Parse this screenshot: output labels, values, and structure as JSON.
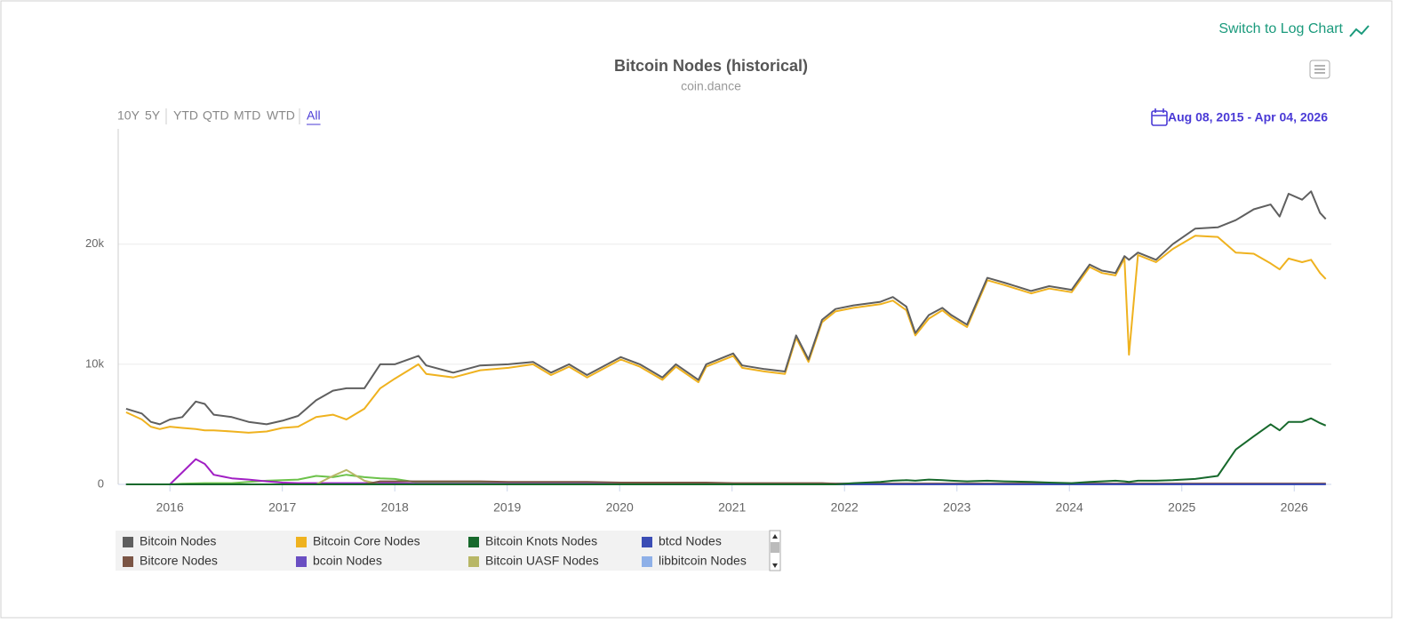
{
  "ui": {
    "log_switch": "Switch to Log Chart",
    "range_buttons": [
      "10Y",
      "5Y",
      "YTD",
      "QTD",
      "MTD",
      "WTD",
      "All"
    ],
    "date_range": "Aug 08, 2015 - Apr 04, 2026"
  },
  "chart_data": {
    "type": "line",
    "title": "Bitcoin Nodes (historical)",
    "subtitle": "coin.dance",
    "x": [
      2015.61,
      2015.75,
      2015.83,
      2015.91,
      2016.0,
      2016.11,
      2016.23,
      2016.31,
      2016.39,
      2016.55,
      2016.7,
      2016.86,
      2017.0,
      2017.14,
      2017.3,
      2017.45,
      2017.57,
      2017.73,
      2017.87,
      2018.0,
      2018.21,
      2018.28,
      2018.52,
      2018.76,
      2019.01,
      2019.23,
      2019.39,
      2019.55,
      2019.71,
      2020.01,
      2020.18,
      2020.38,
      2020.5,
      2020.7,
      2020.77,
      2021.01,
      2021.09,
      2021.29,
      2021.47,
      2021.57,
      2021.68,
      2021.8,
      2021.92,
      2022.08,
      2022.32,
      2022.43,
      2022.55,
      2022.63,
      2022.75,
      2022.87,
      2022.95,
      2023.09,
      2023.27,
      2023.42,
      2023.66,
      2023.82,
      2024.02,
      2024.18,
      2024.29,
      2024.41,
      2024.49,
      2024.53,
      2024.61,
      2024.77,
      2024.92,
      2025.12,
      2025.32,
      2025.48,
      2025.64,
      2025.79,
      2025.87,
      2025.95,
      2026.07,
      2026.15,
      2026.23,
      2026.28
    ],
    "xlim": [
      2015.54,
      2026.33
    ],
    "xticks": [
      2016,
      2017,
      2018,
      2019,
      2020,
      2021,
      2022,
      2023,
      2024,
      2025,
      2026
    ],
    "ylim": [
      0,
      29600
    ],
    "yticks": [
      0,
      {
        "value": 10000,
        "label": "10k"
      },
      {
        "value": 20000,
        "label": "20k"
      }
    ],
    "grid": true,
    "series": [
      {
        "name": "Bitcoin Nodes",
        "color": "#5f5f5f",
        "values": [
          6300,
          5900,
          5200,
          5000,
          5400,
          5600,
          6900,
          6700,
          5800,
          5600,
          5200,
          5000,
          5300,
          5700,
          7000,
          7800,
          8000,
          8000,
          10000,
          10000,
          10700,
          9900,
          9300,
          9900,
          10000,
          10200,
          9300,
          10000,
          9100,
          10600,
          10000,
          8900,
          10000,
          8700,
          10000,
          10900,
          9900,
          9600,
          9400,
          12400,
          10400,
          13700,
          14600,
          14900,
          15200,
          15600,
          14800,
          12600,
          14100,
          14700,
          14100,
          13300,
          17200,
          16800,
          16100,
          16500,
          16200,
          18300,
          17800,
          17600,
          19000,
          18700,
          19300,
          18700,
          20000,
          21300,
          21400,
          22000,
          22900,
          23300,
          22300,
          24200,
          23700,
          24400,
          22600,
          22100
        ]
      },
      {
        "name": "Bitcoin Core Nodes",
        "color": "#efb21f",
        "values": [
          6000,
          5400,
          4800,
          4600,
          4800,
          4700,
          4600,
          4500,
          4500,
          4400,
          4300,
          4400,
          4700,
          4800,
          5600,
          5800,
          5400,
          6300,
          8000,
          8800,
          10000,
          9200,
          8900,
          9500,
          9700,
          10000,
          9100,
          9800,
          8900,
          10400,
          9800,
          8700,
          9800,
          8500,
          9800,
          10700,
          9700,
          9400,
          9200,
          12200,
          10200,
          13500,
          14400,
          14700,
          15000,
          15300,
          14500,
          12400,
          13800,
          14500,
          13900,
          13100,
          17000,
          16600,
          15900,
          16300,
          16000,
          18100,
          17600,
          17400,
          18800,
          10800,
          19100,
          18500,
          19600,
          20700,
          20600,
          19300,
          19200,
          18400,
          17900,
          18800,
          18500,
          18700,
          17600,
          17100
        ]
      },
      {
        "name": "Bitcoin Knots Nodes",
        "color": "#17692c",
        "values": [
          0,
          0,
          0,
          0,
          0,
          0,
          0,
          0,
          0,
          0,
          0,
          0,
          0,
          0,
          0,
          0,
          0,
          0,
          0,
          0,
          0,
          0,
          0,
          0,
          0,
          0,
          0,
          0,
          0,
          0,
          0,
          0,
          0,
          0,
          0,
          0,
          0,
          0,
          0,
          0,
          0,
          0,
          0,
          100,
          200,
          300,
          350,
          300,
          400,
          350,
          300,
          250,
          300,
          250,
          200,
          150,
          100,
          200,
          250,
          300,
          250,
          200,
          300,
          300,
          350,
          450,
          700,
          2900,
          4000,
          5000,
          4500,
          5200,
          5200,
          5500,
          5100,
          4900
        ]
      },
      {
        "name": "btcd Nodes",
        "color": "#3b4db5",
        "values": [
          0,
          0,
          0,
          0,
          0,
          0,
          0,
          0,
          0,
          0,
          0,
          0,
          0,
          0,
          0,
          0,
          0,
          0,
          0,
          0,
          0,
          0,
          0,
          0,
          0,
          0,
          0,
          0,
          0,
          0,
          0,
          0,
          0,
          0,
          0,
          0,
          0,
          0,
          0,
          0,
          0,
          0,
          0,
          0,
          0,
          0,
          0,
          0,
          0,
          0,
          0,
          0,
          0,
          0,
          0,
          0,
          0,
          0,
          0,
          0,
          0,
          0,
          0,
          0,
          0,
          0,
          0,
          0,
          0,
          0,
          0,
          0,
          0,
          0,
          0,
          0
        ]
      },
      {
        "name": "Bitcore Nodes",
        "color": "#7b5545",
        "values": [
          0,
          0,
          0,
          0,
          0,
          0,
          0,
          0,
          0,
          0,
          0,
          0,
          0,
          0,
          0,
          0,
          0,
          0,
          250,
          250,
          250,
          250,
          250,
          250,
          200,
          200,
          200,
          200,
          200,
          150,
          150,
          150,
          150,
          150,
          150,
          100,
          100,
          100,
          100,
          100,
          100,
          100,
          50,
          50,
          50,
          50,
          50,
          50,
          50,
          50,
          50,
          50,
          50,
          50,
          50,
          50,
          50,
          50,
          50,
          50,
          50,
          50,
          50,
          50,
          50,
          50,
          50,
          50,
          50,
          50,
          50,
          50,
          50,
          50,
          50,
          50
        ]
      },
      {
        "name": "bcoin Nodes",
        "color": "#6a4fc2",
        "values": [
          0,
          0,
          0,
          0,
          0,
          0,
          0,
          0,
          0,
          0,
          0,
          0,
          0,
          0,
          0,
          30,
          30,
          30,
          30,
          30,
          30,
          30,
          30,
          30,
          30,
          30,
          30,
          30,
          30,
          30,
          30,
          30,
          30,
          30,
          30,
          30,
          30,
          30,
          30,
          30,
          30,
          30,
          30,
          30,
          30,
          30,
          30,
          30,
          30,
          30,
          30,
          30,
          30,
          30,
          30,
          30,
          30,
          30,
          30,
          30,
          30,
          30,
          30,
          30,
          30,
          30,
          30,
          30,
          30,
          30,
          30,
          30,
          30,
          30,
          30,
          30
        ]
      },
      {
        "name": "Bitcoin UASF Nodes",
        "color": "#b8b766",
        "values": [
          0,
          0,
          0,
          0,
          0,
          0,
          0,
          0,
          0,
          0,
          0,
          0,
          0,
          0,
          0,
          700,
          1200,
          300,
          0,
          0,
          0,
          0,
          0,
          0,
          0,
          0,
          0,
          0,
          0,
          0,
          0,
          0,
          0,
          0,
          0,
          0,
          0,
          0,
          0,
          0,
          0,
          0,
          0,
          0,
          0,
          0,
          0,
          0,
          0,
          0,
          0,
          0,
          0,
          0,
          0,
          0,
          0,
          0,
          0,
          0,
          0,
          0,
          0,
          0,
          0,
          0,
          0,
          0,
          0,
          0,
          0,
          0,
          0,
          0,
          0,
          0
        ]
      },
      {
        "name": "libbitcoin Nodes",
        "color": "#8eb0e8",
        "values": [
          0,
          0,
          0,
          0,
          0,
          0,
          0,
          0,
          0,
          0,
          0,
          0,
          0,
          0,
          0,
          0,
          0,
          0,
          0,
          0,
          0,
          0,
          0,
          0,
          0,
          0,
          0,
          0,
          0,
          0,
          0,
          0,
          0,
          0,
          0,
          0,
          0,
          0,
          0,
          0,
          0,
          0,
          0,
          0,
          0,
          0,
          0,
          0,
          0,
          0,
          0,
          0,
          0,
          0,
          0,
          0,
          0,
          0,
          0,
          0,
          0,
          0,
          0,
          0,
          0,
          0,
          0,
          0,
          0,
          0,
          0,
          0,
          0,
          0,
          0,
          0
        ]
      },
      {
        "color": "#a11fc4",
        "values": [
          0,
          0,
          0,
          0,
          0,
          1000,
          2100,
          1700,
          800,
          500,
          400,
          250,
          150,
          100,
          100,
          100,
          100,
          100,
          100,
          100,
          50,
          50,
          50,
          50,
          50,
          50,
          50,
          50,
          50,
          50,
          50,
          50,
          50,
          50,
          50,
          50,
          50,
          50,
          50,
          50,
          50,
          50,
          50,
          50,
          50,
          50,
          50,
          50,
          50,
          50,
          50,
          50,
          50,
          50,
          50,
          50,
          50,
          50,
          50,
          50,
          50,
          50,
          50,
          50,
          50,
          50,
          50,
          50,
          50,
          50,
          50,
          50,
          50,
          50,
          50,
          50
        ]
      },
      {
        "color": "#6cc24a",
        "values": [
          0,
          0,
          0,
          0,
          0,
          50,
          80,
          100,
          100,
          100,
          200,
          300,
          350,
          400,
          700,
          600,
          800,
          600,
          500,
          450,
          150,
          150,
          150,
          150,
          150,
          150,
          150,
          150,
          150,
          50,
          50,
          50,
          50,
          50,
          50,
          50,
          50,
          50,
          50,
          50,
          50,
          50,
          50,
          50,
          50,
          50,
          50,
          50,
          50,
          50,
          50,
          50,
          50,
          50,
          50,
          50,
          50,
          50,
          50,
          50,
          50,
          50,
          50,
          50,
          50,
          50,
          50,
          50,
          50,
          50,
          50,
          50,
          50,
          50,
          50,
          50
        ]
      }
    ]
  }
}
